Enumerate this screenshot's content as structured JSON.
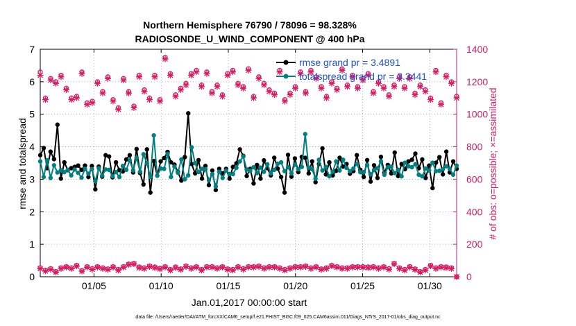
{
  "chart_data": {
    "type": "line",
    "title": [
      "Northern Hemisphere 76790 / 78096 = 98.328%",
      "RADIOSONDE_U_WIND_COMPONENT @ 400 hPa"
    ],
    "xlabel": "Jan.01,2017 00:00:00 start",
    "ylabel_left": "rmse and totalspread",
    "ylabel_right": "# of obs: o=possible; ×=assimilated",
    "footnote": "data file: /Users/raeder/DAI/ATM_forcXX/CAM6_setup/f.e21.FHIST_BGC.f09_025.CAM6assim.011/Diags_NTrS_2017-01/obs_diag_output.nc",
    "xlim": [
      1,
      32
    ],
    "ylim_left": [
      0,
      7
    ],
    "ylim_right": [
      0,
      1400
    ],
    "yticks_left": [
      "0",
      "1",
      "2",
      "3",
      "4",
      "5",
      "6",
      "7"
    ],
    "yticks_right": [
      "0",
      "200",
      "400",
      "600",
      "800",
      "1000",
      "1200",
      "1400"
    ],
    "xticks": [
      {
        "day": 5,
        "label": "01/05"
      },
      {
        "day": 10,
        "label": "01/10"
      },
      {
        "day": 15,
        "label": "01/15"
      },
      {
        "day": 20,
        "label": "01/20"
      },
      {
        "day": 25,
        "label": "01/25"
      },
      {
        "day": 30,
        "label": "01/30"
      }
    ],
    "legend": [
      {
        "label": "rmse grand pr = 3.4891",
        "color": "#000000"
      },
      {
        "label": "totalspread grand pr = 3.3441",
        "color": "#008080"
      }
    ],
    "colors": {
      "rmse": "#000000",
      "spread": "#008080",
      "obs": "#d81b60",
      "legend_text": "#1a4fd8"
    },
    "series_left": [
      {
        "name": "rmse",
        "color": "#000000",
        "values": [
          3.74,
          3.96,
          3.34,
          3.85,
          3.62,
          4.68,
          3.02,
          3.52,
          3.28,
          3.34,
          3.38,
          3.42,
          3.29,
          3.42,
          3.07,
          3.41,
          2.69,
          3.39,
          3.08,
          3.74,
          3.7,
          3.06,
          3.52,
          3.28,
          3.24,
          3.61,
          3.74,
          3.21,
          3.93,
          3.19,
          2.84,
          3.92,
          2.59,
          3.56,
          3.11,
          3.55,
          3.65,
          3.84,
          3.52,
          3.45,
          3.23,
          2.96,
          3.68,
          5.03,
          3.47,
          3.18,
          3.59,
          3.02,
          3.41,
          2.82,
          3.27,
          2.67,
          3.32,
          3.18,
          3.32,
          3.02,
          3.38,
          3.49,
          3.92,
          3.72,
          3.1,
          3.32,
          2.87,
          3.44,
          3.02,
          3.58,
          3.34,
          3.12,
          3.66,
          3.33,
          3.07,
          2.59,
          3.75,
          3.08,
          3.64,
          3.22,
          3.69,
          3.66,
          3.18,
          3.55,
          2.91,
          3.47,
          3.95,
          3.15,
          3.52,
          3.12,
          3.26,
          3.66,
          3.39,
          3.47,
          3.17,
          3.25,
          3.74,
          3.29,
          3.07,
          3.59,
          2.93,
          3.43,
          3.04,
          3.69,
          3.2,
          3.44,
          3.18,
          3.82,
          3.1,
          3.47,
          3.31,
          3.55,
          3.6,
          3.79,
          3.34,
          3.61,
          3.04,
          3.42,
          2.73,
          3.51,
          3.68,
          3.15,
          3.85,
          3.21,
          3.55,
          3.32
        ]
      },
      {
        "name": "totalspread",
        "color": "#008080",
        "values": [
          3.55,
          3.07,
          3.58,
          3.04,
          3.43,
          3.21,
          3.28,
          3.22,
          3.29,
          3.12,
          3.3,
          3.2,
          3.05,
          3.32,
          3.17,
          3.31,
          2.94,
          3.34,
          3.11,
          3.3,
          3.29,
          3.09,
          3.22,
          3.07,
          3.41,
          3.29,
          3.58,
          3.27,
          3.66,
          3.23,
          3.77,
          3.49,
          3.07,
          4.35,
          3.11,
          3.33,
          3.32,
          3.78,
          3.07,
          3.39,
          3.2,
          3.61,
          3.0,
          3.12,
          3.98,
          3.5,
          3.22,
          3.32,
          3.31,
          2.97,
          3.16,
          2.78,
          3.23,
          3.04,
          3.27,
          3.16,
          3.16,
          3.35,
          3.55,
          3.7,
          3.3,
          3.26,
          3.37,
          3.19,
          3.36,
          3.23,
          3.46,
          3.18,
          3.29,
          3.48,
          3.52,
          3.25,
          3.37,
          3.18,
          3.45,
          3.31,
          3.38,
          4.39,
          3.36,
          3.31,
          3.02,
          3.6,
          3.27,
          3.38,
          3.09,
          3.23,
          3.55,
          3.27,
          3.6,
          3.35,
          3.25,
          3.33,
          3.47,
          3.22,
          3.22,
          3.44,
          3.15,
          3.28,
          3.34,
          3.55,
          3.14,
          3.37,
          3.39,
          3.19,
          3.29,
          3.09,
          3.51,
          3.4,
          3.37,
          3.46,
          3.14,
          3.09,
          3.33,
          3.27,
          3.51,
          3.25,
          3.26,
          3.31,
          3.4,
          3.32,
          3.14,
          3.42
        ]
      }
    ],
    "series_right": [
      {
        "name": "possible",
        "marker": "o",
        "values": [
          1260,
          1100,
          1220,
          1200,
          1240,
          1160,
          1100,
          1110,
          1260,
          1070,
          1080,
          1200,
          1140,
          1230,
          1090,
          1040,
          1220,
          1140,
          1050,
          1240,
          1150,
          1100,
          1240,
          1090,
          1350,
          1250,
          1120,
          1160,
          1190,
          1250,
          1270,
          1180,
          1260,
          1140,
          1180,
          1120,
          1250,
          1270,
          1190,
          1170,
          1280,
          1110,
          1230,
          1190,
          1150,
          1130,
          1270,
          1090,
          1130,
          1170,
          1260,
          1140,
          1270,
          1230,
          1170,
          1110,
          1200,
          1160,
          1280,
          1180,
          1240,
          1170,
          1220,
          1250,
          1140,
          1200,
          1170,
          1120,
          1180,
          1230,
          1170,
          1230,
          1130,
          1180,
          1150,
          1100,
          1270,
          1070,
          1240,
          1200,
          1110
        ]
      },
      {
        "name": "assimilated",
        "marker": "x",
        "values": [
          1240,
          1090,
          1210,
          1190,
          1230,
          1150,
          1090,
          1100,
          1250,
          1060,
          1070,
          1190,
          1130,
          1220,
          1080,
          1030,
          1210,
          1130,
          1040,
          1230,
          1140,
          1090,
          1230,
          1080,
          1340,
          1240,
          1110,
          1150,
          1180,
          1240,
          1260,
          1170,
          1250,
          1130,
          1170,
          1110,
          1240,
          1260,
          1180,
          1160,
          1270,
          1100,
          1220,
          1180,
          1140,
          1120,
          1260,
          1080,
          1120,
          1160,
          1250,
          1130,
          1260,
          1220,
          1160,
          1100,
          1190,
          1150,
          1270,
          1170,
          1230,
          1160,
          1210,
          1240,
          1130,
          1190,
          1160,
          1110,
          1170,
          1220,
          1160,
          1220,
          1120,
          1170,
          1140,
          1090,
          1260,
          1060,
          1230,
          1190,
          1100
        ]
      },
      {
        "name": "possible_low",
        "marker": "o",
        "values": [
          55,
          40,
          50,
          32,
          55,
          62,
          55,
          70,
          38,
          62,
          50,
          62,
          55,
          48,
          62,
          45,
          62,
          78,
          82,
          60,
          55,
          66,
          60,
          52,
          62,
          45,
          60,
          48,
          66,
          55,
          62,
          45,
          62,
          62,
          55,
          62,
          48,
          45,
          62,
          50,
          62,
          62,
          66,
          55,
          62,
          62,
          55,
          45,
          55,
          62,
          62,
          66,
          55,
          62,
          48,
          55,
          70,
          62,
          55,
          55,
          62,
          62,
          62,
          60,
          62,
          55,
          62,
          50,
          82,
          55,
          45,
          62,
          48,
          32,
          45,
          70,
          55,
          62,
          60,
          55,
          0
        ]
      },
      {
        "name": "assimilated_low",
        "marker": "x",
        "values": [
          50,
          35,
          45,
          28,
          50,
          58,
          50,
          65,
          34,
          58,
          45,
          58,
          50,
          44,
          58,
          40,
          58,
          74,
          78,
          55,
          50,
          62,
          55,
          48,
          58,
          40,
          55,
          44,
          62,
          50,
          58,
          40,
          58,
          58,
          50,
          58,
          44,
          40,
          58,
          45,
          58,
          58,
          62,
          50,
          58,
          58,
          50,
          40,
          50,
          58,
          58,
          62,
          50,
          58,
          44,
          50,
          66,
          58,
          50,
          50,
          58,
          58,
          58,
          55,
          58,
          50,
          58,
          45,
          78,
          50,
          40,
          58,
          44,
          28,
          40,
          66,
          50,
          58,
          55,
          50,
          0
        ]
      }
    ]
  }
}
